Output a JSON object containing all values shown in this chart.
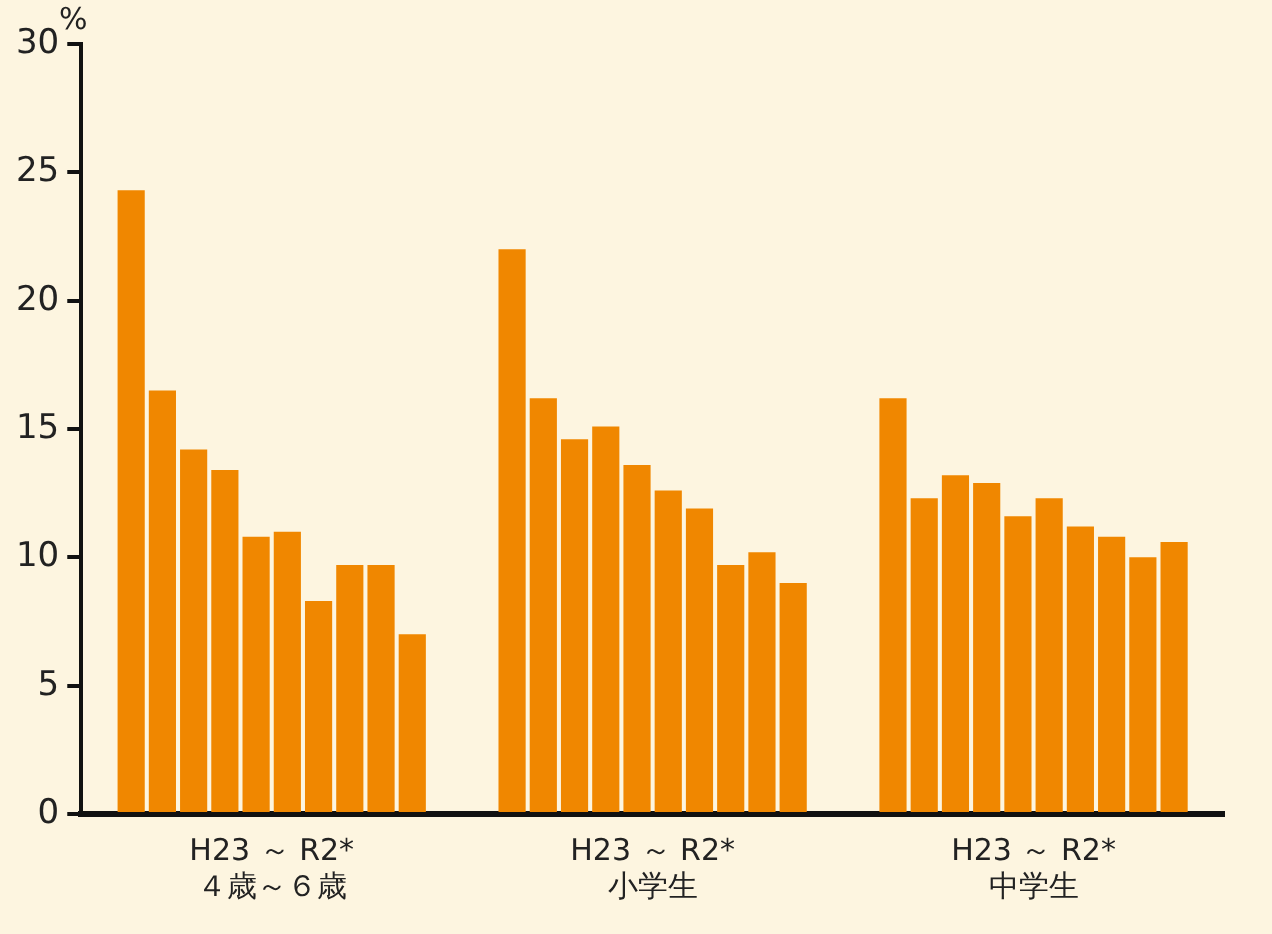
{
  "chart_data": {
    "type": "bar",
    "ylabel": "%",
    "categories": [
      "H23 ～ R2*\n４歳～６歳",
      "H23 ～ R2*\n小学生",
      "H23 ～ R2*\n中学生"
    ],
    "series": [
      {
        "color": "#f08700",
        "values": [
          24.3,
          22.0,
          16.2
        ]
      },
      {
        "color": "#f08700",
        "values": [
          16.5,
          16.2,
          12.3
        ]
      },
      {
        "color": "#f08700",
        "values": [
          14.2,
          14.6,
          13.2
        ]
      },
      {
        "color": "#f08700",
        "values": [
          13.4,
          15.1,
          12.9
        ]
      },
      {
        "color": "#f08700",
        "values": [
          10.8,
          13.6,
          11.6
        ]
      },
      {
        "color": "#f08700",
        "values": [
          11.0,
          12.6,
          12.3
        ]
      },
      {
        "color": "#f08700",
        "values": [
          8.3,
          11.9,
          11.2
        ]
      },
      {
        "color": "#f08700",
        "values": [
          9.7,
          9.7,
          10.8
        ]
      },
      {
        "color": "#f08700",
        "values": [
          9.7,
          10.2,
          10.0
        ]
      },
      {
        "color": "#f08700",
        "values": [
          7.0,
          9.0,
          10.6
        ]
      }
    ],
    "ylim": [
      0,
      30
    ],
    "yticks": [
      0,
      5,
      10,
      15,
      20,
      25,
      30
    ],
    "grid": false,
    "legend": false
  }
}
